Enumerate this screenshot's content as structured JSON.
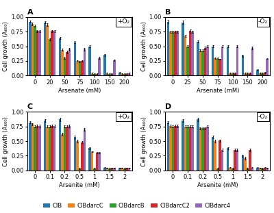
{
  "chart_data": [
    {
      "type": "bar",
      "title": "A",
      "annotations": [
        "+O₂"
      ],
      "xlabel": "Arsenate (mM)",
      "ylabel": "Cell growth (A₆₀₀)",
      "categories": [
        "0",
        "20",
        "50",
        "75",
        "100",
        "150",
        "200"
      ],
      "series": [
        {
          "name": "CIB",
          "values": [
            0.92,
            0.91,
            0.64,
            0.57,
            0.5,
            0.35,
            0.05
          ],
          "errors": [
            0.02,
            0.02,
            0.02,
            0.02,
            0.02,
            0.02,
            0.01
          ]
        },
        {
          "name": "CIBdarcC",
          "values": [
            0.88,
            0.87,
            0.44,
            0.25,
            0.04,
            0.04,
            0.03
          ],
          "errors": [
            0.02,
            0.02,
            0.02,
            0.01,
            0.01,
            0.01,
            0.01
          ]
        },
        {
          "name": "CIBdarcB",
          "values": [
            0.85,
            0.62,
            0.3,
            0.24,
            0.03,
            0.03,
            0.03
          ],
          "errors": [
            0.02,
            0.02,
            0.02,
            0.01,
            0.01,
            0.01,
            0.01
          ]
        },
        {
          "name": "CIBdarcC2",
          "values": [
            0.76,
            0.76,
            0.4,
            0.25,
            0.03,
            0.03,
            0.03
          ],
          "errors": [
            0.02,
            0.02,
            0.02,
            0.01,
            0.01,
            0.01,
            0.01
          ]
        },
        {
          "name": "CIBdarc4",
          "values": [
            0.76,
            0.76,
            0.45,
            0.45,
            0.3,
            0.26,
            0.04
          ],
          "errors": [
            0.02,
            0.02,
            0.02,
            0.02,
            0.02,
            0.01,
            0.01
          ]
        }
      ],
      "ylim": [
        0,
        1.0
      ],
      "yticks": [
        {
          "value": 0,
          "label": "0.00"
        },
        {
          "value": 0.25,
          "label": "0.25"
        },
        {
          "value": 0.5,
          "label": "0.50"
        },
        {
          "value": 0.75,
          "label": "0.75"
        },
        {
          "value": 1,
          "label": "1.00"
        }
      ],
      "grid": false,
      "legend": "lower center"
    },
    {
      "type": "bar",
      "title": "B",
      "annotations": [
        "-O₂"
      ],
      "xlabel": "Arsenate (mM)",
      "ylabel": "Cell growth (A₆₀₀)",
      "categories": [
        "0",
        "25",
        "50",
        "75",
        "100",
        "150",
        "200"
      ],
      "series": [
        {
          "name": "CIB",
          "values": [
            0.92,
            0.91,
            0.58,
            0.5,
            0.5,
            0.34,
            0.1
          ],
          "errors": [
            0.03,
            0.03,
            0.02,
            0.02,
            0.02,
            0.02,
            0.01
          ]
        },
        {
          "name": "CIBdarcC",
          "values": [
            0.75,
            0.68,
            0.43,
            0.3,
            0.04,
            0.04,
            0.04
          ],
          "errors": [
            0.02,
            0.02,
            0.02,
            0.01,
            0.01,
            0.01,
            0.01
          ]
        },
        {
          "name": "CIBdarcB",
          "values": [
            0.75,
            0.5,
            0.43,
            0.3,
            0.04,
            0.04,
            0.04
          ],
          "errors": [
            0.02,
            0.02,
            0.02,
            0.01,
            0.01,
            0.01,
            0.01
          ]
        },
        {
          "name": "CIBdarcC2",
          "values": [
            0.75,
            0.76,
            0.47,
            0.28,
            0.04,
            0.04,
            0.05
          ],
          "errors": [
            0.02,
            0.03,
            0.02,
            0.01,
            0.01,
            0.01,
            0.01
          ]
        },
        {
          "name": "CIBdarc4",
          "values": [
            0.75,
            0.75,
            0.5,
            0.5,
            0.5,
            0.47,
            0.29
          ],
          "errors": [
            0.02,
            0.02,
            0.02,
            0.02,
            0.02,
            0.02,
            0.01
          ]
        }
      ],
      "ylim": [
        0,
        1.0
      ],
      "yticks": [
        {
          "value": 0,
          "label": "0.00"
        },
        {
          "value": 0.25,
          "label": "0.25"
        },
        {
          "value": 0.5,
          "label": "0.50"
        },
        {
          "value": 0.75,
          "label": "0.75"
        },
        {
          "value": 1,
          "label": "1.00"
        }
      ],
      "grid": false,
      "legend": "lower center"
    },
    {
      "type": "bar",
      "title": "C",
      "annotations": [
        "+O₂"
      ],
      "xlabel": "Arsenite (mM)",
      "ylabel": "Cell growth (A₆₀₀)",
      "categories": [
        "0",
        "0.1",
        "0.2",
        "0.5",
        "1",
        "1.5",
        "2"
      ],
      "series": [
        {
          "name": "CIB",
          "values": [
            0.82,
            0.85,
            0.87,
            0.57,
            0.38,
            0.05,
            0.04
          ],
          "errors": [
            0.02,
            0.02,
            0.03,
            0.02,
            0.02,
            0.01,
            0.01
          ]
        },
        {
          "name": "CIBdarcC",
          "values": [
            0.79,
            0.75,
            0.62,
            0.5,
            0.32,
            0.04,
            0.04
          ],
          "errors": [
            0.02,
            0.02,
            0.02,
            0.02,
            0.01,
            0.01,
            0.01
          ]
        },
        {
          "name": "CIBdarcB",
          "values": [
            0.75,
            0.75,
            0.75,
            0.03,
            0.03,
            0.03,
            0.03
          ],
          "errors": [
            0.02,
            0.02,
            0.02,
            0.01,
            0.01,
            0.01,
            0.01
          ]
        },
        {
          "name": "CIBdarcC2",
          "values": [
            0.76,
            0.76,
            0.75,
            0.48,
            0.3,
            0.04,
            0.04
          ],
          "errors": [
            0.02,
            0.02,
            0.02,
            0.02,
            0.01,
            0.01,
            0.01
          ]
        },
        {
          "name": "CIBdarc4",
          "values": [
            0.76,
            0.76,
            0.76,
            0.7,
            0.3,
            0.04,
            0.04
          ],
          "errors": [
            0.02,
            0.02,
            0.02,
            0.02,
            0.01,
            0.01,
            0.01
          ]
        }
      ],
      "ylim": [
        0,
        1.0
      ],
      "yticks": [
        {
          "value": 0,
          "label": "0.00"
        },
        {
          "value": 0.25,
          "label": "0.25"
        },
        {
          "value": 0.5,
          "label": "0.50"
        },
        {
          "value": 0.75,
          "label": "0.75"
        },
        {
          "value": 1,
          "label": "1.00"
        }
      ],
      "grid": false,
      "legend": "lower center"
    },
    {
      "type": "bar",
      "title": "D",
      "annotations": [
        "-O₂"
      ],
      "xlabel": "Arsenite (mM)",
      "ylabel": "Cell growth (A₆₀₀)",
      "categories": [
        "0",
        "0.1",
        "0.2",
        "0.5",
        "1",
        "1.5",
        "2"
      ],
      "series": [
        {
          "name": "CIB",
          "values": [
            0.82,
            0.85,
            0.87,
            0.57,
            0.38,
            0.25,
            0.05
          ],
          "errors": [
            0.02,
            0.02,
            0.03,
            0.02,
            0.02,
            0.02,
            0.01
          ]
        },
        {
          "name": "CIBdarcC",
          "values": [
            0.76,
            0.75,
            0.72,
            0.5,
            0.05,
            0.21,
            0.04
          ],
          "errors": [
            0.02,
            0.02,
            0.02,
            0.02,
            0.01,
            0.02,
            0.01
          ]
        },
        {
          "name": "CIBdarcB",
          "values": [
            0.75,
            0.75,
            0.72,
            0.03,
            0.03,
            0.03,
            0.03
          ],
          "errors": [
            0.02,
            0.02,
            0.02,
            0.01,
            0.01,
            0.01,
            0.01
          ]
        },
        {
          "name": "CIBdarcC2",
          "values": [
            0.76,
            0.75,
            0.72,
            0.51,
            0.35,
            0.35,
            0.05
          ],
          "errors": [
            0.02,
            0.02,
            0.02,
            0.02,
            0.02,
            0.02,
            0.01
          ]
        },
        {
          "name": "CIBdarc4",
          "values": [
            0.76,
            0.75,
            0.75,
            0.35,
            0.35,
            0.05,
            0.04
          ],
          "errors": [
            0.02,
            0.02,
            0.02,
            0.02,
            0.02,
            0.01,
            0.01
          ]
        }
      ],
      "ylim": [
        0,
        1.0
      ],
      "yticks": [
        {
          "value": 0,
          "label": "0.00"
        },
        {
          "value": 0.25,
          "label": "0.25"
        },
        {
          "value": 0.5,
          "label": "0.50"
        },
        {
          "value": 0.75,
          "label": "0.75"
        },
        {
          "value": 1,
          "label": "1.00"
        }
      ],
      "grid": false,
      "legend": "lower center"
    }
  ]
}
